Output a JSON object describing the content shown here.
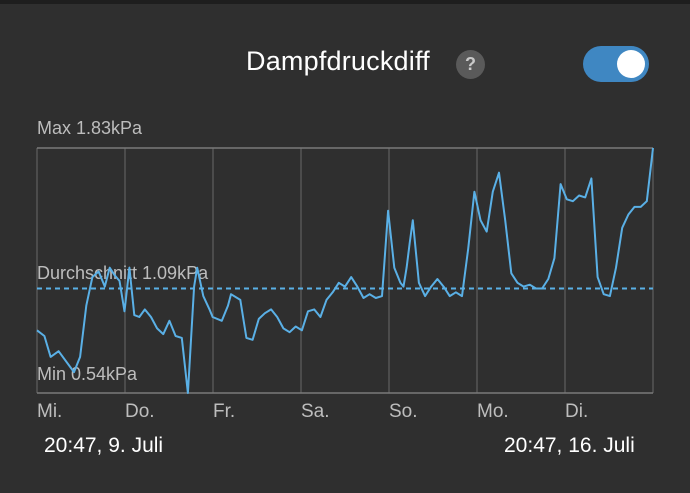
{
  "header": {
    "title": "Dampfdruckdiff",
    "help_glyph": "?",
    "toggle_on": true
  },
  "chart_data": {
    "type": "line",
    "title": "",
    "max_label": "Max 1.83kPa",
    "avg_label": "Durchschnitt 1.09kPa",
    "min_label": "Min 0.54kPa",
    "ylim": [
      0.54,
      1.83
    ],
    "average": 1.09,
    "x_days": [
      "Mi.",
      "Do.",
      "Fr.",
      "Sa.",
      "So.",
      "Mo.",
      "Di."
    ],
    "x_range": [
      "20:47,  9. Juli",
      "20:47,  16. Juli"
    ],
    "series": [
      {
        "color": "#5ab0e6",
        "t": [
          0.0,
          0.012,
          0.022,
          0.035,
          0.06,
          0.07,
          0.08,
          0.09,
          0.1,
          0.11,
          0.118,
          0.126,
          0.134,
          0.142,
          0.15,
          0.158,
          0.166,
          0.175,
          0.185,
          0.195,
          0.205,
          0.215,
          0.225,
          0.235,
          0.245,
          0.255,
          0.26,
          0.27,
          0.28,
          0.285,
          0.3,
          0.31,
          0.315,
          0.33,
          0.34,
          0.35,
          0.36,
          0.37,
          0.38,
          0.39,
          0.4,
          0.41,
          0.42,
          0.43,
          0.44,
          0.45,
          0.46,
          0.47,
          0.48,
          0.49,
          0.5,
          0.51,
          0.52,
          0.53,
          0.54,
          0.55,
          0.56,
          0.57,
          0.58,
          0.59,
          0.595,
          0.6,
          0.605,
          0.61,
          0.62,
          0.63,
          0.64,
          0.65,
          0.66,
          0.67,
          0.68,
          0.69,
          0.7,
          0.71,
          0.72,
          0.73,
          0.74,
          0.75,
          0.76,
          0.77,
          0.78,
          0.79,
          0.8,
          0.81,
          0.82,
          0.83,
          0.84,
          0.85,
          0.86,
          0.87,
          0.88,
          0.89,
          0.9,
          0.91,
          0.92,
          0.93,
          0.94,
          0.95,
          0.96,
          0.97,
          0.98,
          0.99,
          1.0
        ],
        "values": [
          0.87,
          0.84,
          0.73,
          0.76,
          0.65,
          0.73,
          1.0,
          1.15,
          1.18,
          1.1,
          1.2,
          1.16,
          1.13,
          0.97,
          1.2,
          0.95,
          0.94,
          0.98,
          0.94,
          0.88,
          0.85,
          0.92,
          0.84,
          0.83,
          0.54,
          1.1,
          1.2,
          1.05,
          0.98,
          0.94,
          0.92,
          1.0,
          1.06,
          1.03,
          0.83,
          0.82,
          0.93,
          0.96,
          0.98,
          0.94,
          0.88,
          0.86,
          0.89,
          0.87,
          0.97,
          0.98,
          0.94,
          1.03,
          1.07,
          1.12,
          1.1,
          1.15,
          1.1,
          1.04,
          1.06,
          1.04,
          1.05,
          1.5,
          1.2,
          1.12,
          1.1,
          1.2,
          1.33,
          1.45,
          1.12,
          1.05,
          1.1,
          1.14,
          1.1,
          1.05,
          1.07,
          1.05,
          1.3,
          1.6,
          1.45,
          1.39,
          1.6,
          1.7,
          1.45,
          1.17,
          1.12,
          1.1,
          1.11,
          1.09,
          1.09,
          1.14,
          1.25,
          1.64,
          1.56,
          1.55,
          1.58,
          1.57,
          1.67,
          1.15,
          1.06,
          1.05,
          1.2,
          1.41,
          1.48,
          1.52,
          1.52,
          1.55,
          1.83
        ]
      }
    ]
  }
}
